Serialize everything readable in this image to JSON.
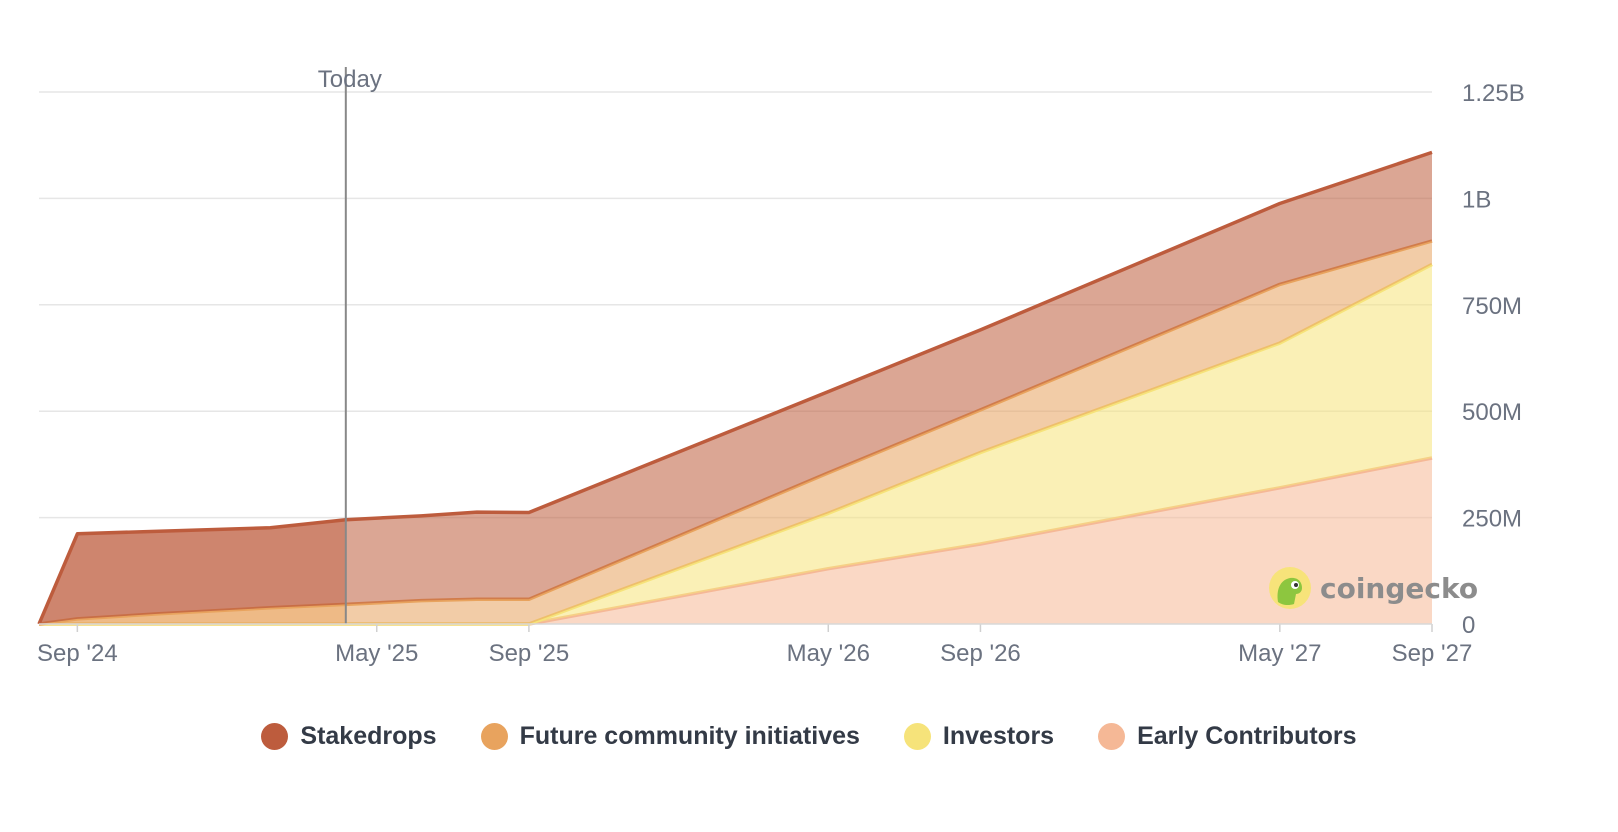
{
  "chart_data": {
    "type": "area",
    "stacked": true,
    "title": "",
    "xlabel": "",
    "ylabel": "",
    "x_tick_labels": [
      "Sep '24",
      "May '25",
      "Sep '25",
      "May '26",
      "Sep '26",
      "May '27",
      "Sep '27"
    ],
    "y_tick_labels": [
      "0",
      "250M",
      "500M",
      "750M",
      "1B",
      "1.25B"
    ],
    "ylim": [
      0,
      1250000000
    ],
    "y_axis_position": "right",
    "grid": true,
    "legend_position": "bottom",
    "today_marker": {
      "label": "Today",
      "x": "2025-05-01"
    },
    "x": [
      "2024-08-26",
      "2024-09-26",
      "2024-12-01",
      "2025-03-01",
      "2025-05-01",
      "2025-07-01",
      "2025-08-15",
      "2025-09-26",
      "2026-05-26",
      "2026-09-26",
      "2027-05-26",
      "2027-09-26"
    ],
    "series": [
      {
        "name": "Early Contributors",
        "color": "#f5b896",
        "values": [
          0,
          0,
          0,
          0,
          0,
          0,
          0,
          0,
          130000000,
          188000000,
          320000000,
          390000000
        ]
      },
      {
        "name": "Investors",
        "color": "#f6e37a",
        "values": [
          0,
          0,
          0,
          0,
          0,
          0,
          0,
          0,
          130000000,
          215000000,
          340000000,
          455000000
        ]
      },
      {
        "name": "Future community initiatives",
        "color": "#e8a35e",
        "values": [
          0,
          12000000,
          24000000,
          38000000,
          46000000,
          55000000,
          58000000,
          58000000,
          95000000,
          100000000,
          138000000,
          55000000
        ]
      },
      {
        "name": "Stakedrops",
        "color": "#bd5c3d",
        "values": [
          0,
          200000000,
          194000000,
          188000000,
          199000000,
          199000000,
          205000000,
          204000000,
          191000000,
          188000000,
          190000000,
          208000000
        ]
      }
    ]
  },
  "watermark": {
    "text": "coingecko"
  }
}
